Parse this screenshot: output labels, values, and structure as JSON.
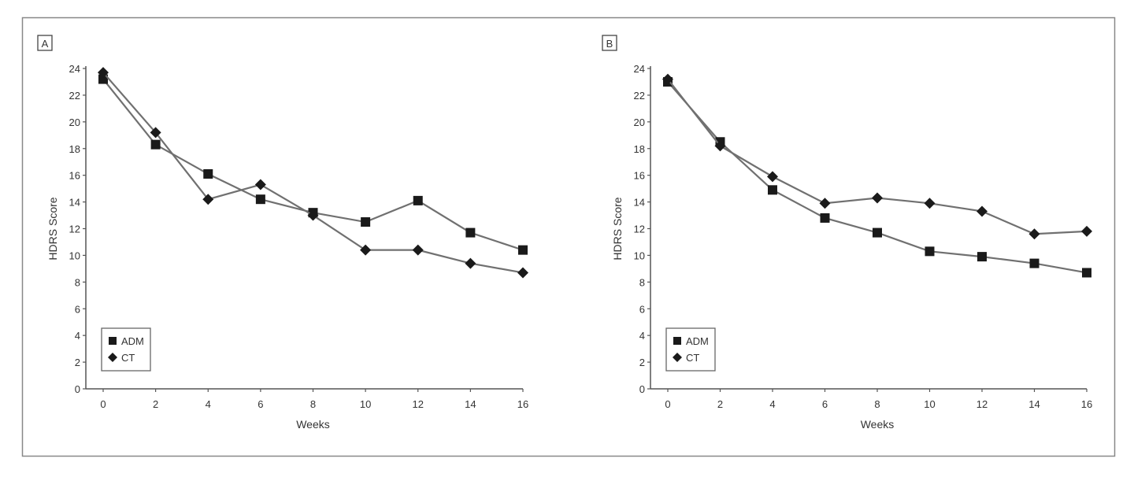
{
  "chart_data": [
    {
      "type": "line",
      "panel_label": "A",
      "xlabel": "Weeks",
      "ylabel": "HDRS Score",
      "x": [
        0,
        2,
        4,
        6,
        8,
        10,
        12,
        14,
        16
      ],
      "xticks": [
        "0",
        "2",
        "4",
        "6",
        "8",
        "10",
        "12",
        "14",
        "16"
      ],
      "yticks": [
        "0",
        "2",
        "4",
        "6",
        "8",
        "10",
        "12",
        "14",
        "16",
        "18",
        "20",
        "22",
        "24"
      ],
      "xlim": [
        0,
        16
      ],
      "ylim": [
        0,
        24
      ],
      "grid": false,
      "legend_position": "bottom-left",
      "series": [
        {
          "name": "ADM",
          "marker": "square",
          "values": [
            23.2,
            18.3,
            16.1,
            14.2,
            13.2,
            12.5,
            14.1,
            11.7,
            10.4
          ]
        },
        {
          "name": "CT",
          "marker": "diamond",
          "values": [
            23.7,
            19.2,
            14.2,
            15.3,
            13.0,
            10.4,
            10.4,
            9.4,
            8.7
          ]
        }
      ]
    },
    {
      "type": "line",
      "panel_label": "B",
      "xlabel": "Weeks",
      "ylabel": "HDRS Score",
      "x": [
        0,
        2,
        4,
        6,
        8,
        10,
        12,
        14,
        16
      ],
      "xticks": [
        "0",
        "2",
        "4",
        "6",
        "8",
        "10",
        "12",
        "14",
        "16"
      ],
      "yticks": [
        "0",
        "2",
        "4",
        "6",
        "8",
        "10",
        "12",
        "14",
        "16",
        "18",
        "20",
        "22",
        "24"
      ],
      "xlim": [
        0,
        16
      ],
      "ylim": [
        0,
        24
      ],
      "grid": false,
      "legend_position": "bottom-left",
      "series": [
        {
          "name": "ADM",
          "marker": "square",
          "values": [
            23.0,
            18.5,
            14.9,
            12.8,
            11.7,
            10.3,
            9.9,
            9.4,
            8.7
          ]
        },
        {
          "name": "CT",
          "marker": "diamond",
          "values": [
            23.2,
            18.2,
            15.9,
            13.9,
            14.3,
            13.9,
            13.3,
            11.6,
            11.8
          ]
        }
      ]
    }
  ],
  "colors": {
    "line": "#707070",
    "marker": "#1a1a1a",
    "frame": "#888888"
  }
}
